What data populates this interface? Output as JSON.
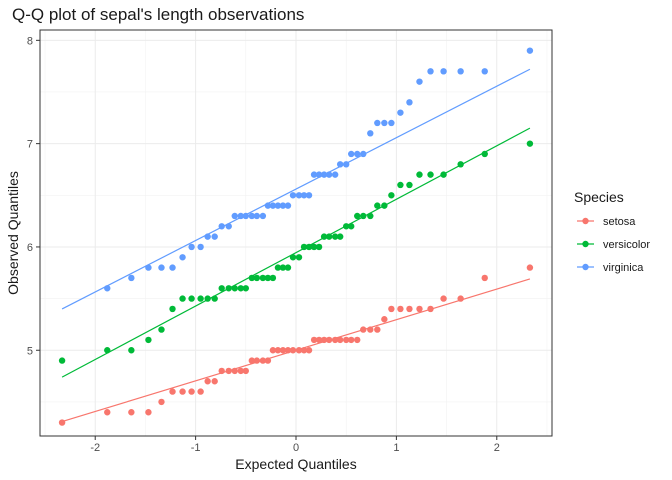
{
  "chart_data": {
    "type": "scatter",
    "title": "Q-Q plot of sepal's length observations",
    "xlabel": "Expected Quantiles",
    "ylabel": "Observed Quantiles",
    "xlim": [
      -2.55,
      2.55
    ],
    "ylim": [
      4.17,
      8.1
    ],
    "x_ticks": [
      -2,
      -1,
      0,
      1,
      2
    ],
    "y_ticks": [
      5,
      6,
      7,
      8
    ],
    "grid": true,
    "legend": {
      "title": "Species",
      "placement": "right"
    },
    "series": [
      {
        "name": "setosa",
        "color": "#F8766D",
        "line": [
          [
            -2.33,
            4.31
          ],
          [
            2.33,
            5.69
          ]
        ],
        "points": [
          [
            -2.33,
            4.3
          ],
          [
            -1.88,
            4.4
          ],
          [
            -1.64,
            4.4
          ],
          [
            -1.47,
            4.4
          ],
          [
            -1.34,
            4.5
          ],
          [
            -1.23,
            4.6
          ],
          [
            -1.13,
            4.6
          ],
          [
            -1.04,
            4.6
          ],
          [
            -0.95,
            4.6
          ],
          [
            -0.88,
            4.7
          ],
          [
            -0.81,
            4.7
          ],
          [
            -0.74,
            4.8
          ],
          [
            -0.67,
            4.8
          ],
          [
            -0.61,
            4.8
          ],
          [
            -0.55,
            4.8
          ],
          [
            -0.5,
            4.8
          ],
          [
            -0.44,
            4.9
          ],
          [
            -0.39,
            4.9
          ],
          [
            -0.33,
            4.9
          ],
          [
            -0.28,
            4.9
          ],
          [
            -0.23,
            5.0
          ],
          [
            -0.18,
            5.0
          ],
          [
            -0.13,
            5.0
          ],
          [
            -0.08,
            5.0
          ],
          [
            -0.03,
            5.0
          ],
          [
            0.03,
            5.0
          ],
          [
            0.08,
            5.0
          ],
          [
            0.13,
            5.0
          ],
          [
            0.18,
            5.1
          ],
          [
            0.23,
            5.1
          ],
          [
            0.28,
            5.1
          ],
          [
            0.33,
            5.1
          ],
          [
            0.39,
            5.1
          ],
          [
            0.44,
            5.1
          ],
          [
            0.5,
            5.1
          ],
          [
            0.55,
            5.1
          ],
          [
            0.61,
            5.1
          ],
          [
            0.67,
            5.2
          ],
          [
            0.74,
            5.2
          ],
          [
            0.81,
            5.2
          ],
          [
            0.88,
            5.3
          ],
          [
            0.95,
            5.4
          ],
          [
            1.04,
            5.4
          ],
          [
            1.13,
            5.4
          ],
          [
            1.23,
            5.4
          ],
          [
            1.34,
            5.4
          ],
          [
            1.47,
            5.5
          ],
          [
            1.64,
            5.5
          ],
          [
            1.88,
            5.7
          ],
          [
            2.33,
            5.8
          ]
        ]
      },
      {
        "name": "versicolor",
        "color": "#00BA38",
        "line": [
          [
            -2.33,
            4.74
          ],
          [
            2.33,
            7.15
          ]
        ],
        "points": [
          [
            -2.33,
            4.9
          ],
          [
            -1.88,
            5.0
          ],
          [
            -1.64,
            5.0
          ],
          [
            -1.47,
            5.1
          ],
          [
            -1.34,
            5.2
          ],
          [
            -1.23,
            5.4
          ],
          [
            -1.13,
            5.5
          ],
          [
            -1.04,
            5.5
          ],
          [
            -0.95,
            5.5
          ],
          [
            -0.88,
            5.5
          ],
          [
            -0.81,
            5.5
          ],
          [
            -0.74,
            5.6
          ],
          [
            -0.67,
            5.6
          ],
          [
            -0.61,
            5.6
          ],
          [
            -0.55,
            5.6
          ],
          [
            -0.5,
            5.6
          ],
          [
            -0.44,
            5.7
          ],
          [
            -0.39,
            5.7
          ],
          [
            -0.33,
            5.7
          ],
          [
            -0.28,
            5.7
          ],
          [
            -0.23,
            5.7
          ],
          [
            -0.18,
            5.8
          ],
          [
            -0.13,
            5.8
          ],
          [
            -0.08,
            5.8
          ],
          [
            -0.03,
            5.9
          ],
          [
            0.03,
            5.9
          ],
          [
            0.08,
            6.0
          ],
          [
            0.13,
            6.0
          ],
          [
            0.18,
            6.0
          ],
          [
            0.23,
            6.0
          ],
          [
            0.28,
            6.1
          ],
          [
            0.33,
            6.1
          ],
          [
            0.39,
            6.1
          ],
          [
            0.44,
            6.1
          ],
          [
            0.5,
            6.2
          ],
          [
            0.55,
            6.2
          ],
          [
            0.61,
            6.3
          ],
          [
            0.67,
            6.3
          ],
          [
            0.74,
            6.3
          ],
          [
            0.81,
            6.4
          ],
          [
            0.88,
            6.4
          ],
          [
            0.95,
            6.5
          ],
          [
            1.04,
            6.6
          ],
          [
            1.13,
            6.6
          ],
          [
            1.23,
            6.7
          ],
          [
            1.34,
            6.7
          ],
          [
            1.47,
            6.7
          ],
          [
            1.64,
            6.8
          ],
          [
            1.88,
            6.9
          ],
          [
            2.33,
            7.0
          ]
        ]
      },
      {
        "name": "virginica",
        "color": "#619CFF",
        "line": [
          [
            -2.33,
            5.4
          ],
          [
            2.33,
            7.72
          ]
        ],
        "points": [
          [
            -1.88,
            5.6
          ],
          [
            -1.64,
            5.7
          ],
          [
            -1.47,
            5.8
          ],
          [
            -1.34,
            5.8
          ],
          [
            -1.23,
            5.8
          ],
          [
            -1.13,
            5.9
          ],
          [
            -1.04,
            6.0
          ],
          [
            -0.95,
            6.0
          ],
          [
            -0.88,
            6.1
          ],
          [
            -0.81,
            6.1
          ],
          [
            -0.74,
            6.2
          ],
          [
            -0.67,
            6.2
          ],
          [
            -0.61,
            6.3
          ],
          [
            -0.55,
            6.3
          ],
          [
            -0.5,
            6.3
          ],
          [
            -0.44,
            6.3
          ],
          [
            -0.39,
            6.3
          ],
          [
            -0.33,
            6.3
          ],
          [
            -0.28,
            6.4
          ],
          [
            -0.23,
            6.4
          ],
          [
            -0.18,
            6.4
          ],
          [
            -0.13,
            6.4
          ],
          [
            -0.08,
            6.4
          ],
          [
            -0.03,
            6.5
          ],
          [
            0.03,
            6.5
          ],
          [
            0.08,
            6.5
          ],
          [
            0.13,
            6.5
          ],
          [
            0.18,
            6.7
          ],
          [
            0.23,
            6.7
          ],
          [
            0.28,
            6.7
          ],
          [
            0.33,
            6.7
          ],
          [
            0.39,
            6.7
          ],
          [
            0.44,
            6.8
          ],
          [
            0.5,
            6.8
          ],
          [
            0.55,
            6.9
          ],
          [
            0.61,
            6.9
          ],
          [
            0.67,
            6.9
          ],
          [
            0.74,
            7.1
          ],
          [
            0.81,
            7.2
          ],
          [
            0.88,
            7.2
          ],
          [
            0.95,
            7.2
          ],
          [
            1.04,
            7.3
          ],
          [
            1.13,
            7.4
          ],
          [
            1.23,
            7.6
          ],
          [
            1.34,
            7.7
          ],
          [
            1.47,
            7.7
          ],
          [
            1.64,
            7.7
          ],
          [
            1.88,
            7.7
          ],
          [
            2.33,
            7.9
          ]
        ]
      }
    ]
  }
}
